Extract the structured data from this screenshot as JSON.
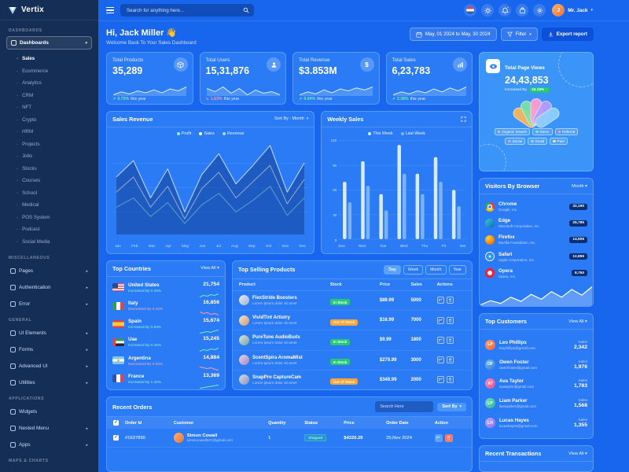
{
  "colors": {
    "success": "#6ef0ac",
    "danger": "#ff99a3",
    "accent": "#2c7bf5",
    "warning": "#ffa43a"
  },
  "brand": {
    "name": "Vertix"
  },
  "header": {
    "search_placeholder": "Search for anything here...",
    "user_name": "Mr. Jack"
  },
  "sidebar": {
    "sections": {
      "dashboards": {
        "label": "DASHBOARDS",
        "parent": "Dashboards",
        "active": "Sales",
        "items": [
          "Sales",
          "Ecommerce",
          "Analytics",
          "CRM",
          "NFT",
          "Crypto",
          "HRM",
          "Projects",
          "Jobs",
          "Stocks",
          "Courses",
          "School",
          "Medical",
          "POS System",
          "Podcast",
          "Social Media"
        ]
      },
      "misc": {
        "label": "MISCELLANEOUS",
        "items": [
          "Pages",
          "Authentication",
          "Error"
        ]
      },
      "general": {
        "label": "GENERAL",
        "items": [
          "UI Elements",
          "Forms",
          "Advanced UI",
          "Utilities"
        ]
      },
      "applications": {
        "label": "APPLICATIONS",
        "items": [
          "Widgets",
          "Nested Menu",
          "Apps"
        ]
      },
      "maps": {
        "label": "MAPS & CHARTS"
      }
    }
  },
  "page": {
    "greeting": "Hi, Jack Miller 👋",
    "subtitle": "Welcome Back To Your Sales Dashboard",
    "date_range": "May, 01 2024 to May, 30 2024",
    "filter_label": "Filter",
    "export_label": "Export report"
  },
  "stats": [
    {
      "label": "Total Products",
      "value": "35,289",
      "change": "0.75%",
      "suffix": "this year",
      "direction": "up",
      "spark": [
        4,
        7,
        5,
        8,
        6,
        9,
        6,
        10,
        8,
        12
      ]
    },
    {
      "label": "Total Users",
      "value": "15,31,876",
      "change": "1.63%",
      "suffix": "this year",
      "direction": "down",
      "spark": [
        8,
        6,
        9,
        5,
        8,
        4,
        7,
        5,
        6,
        4
      ]
    },
    {
      "label": "Total Revenue",
      "value": "$3.853M",
      "change": "0.94%",
      "suffix": "this year",
      "direction": "up",
      "spark": [
        3,
        6,
        4,
        8,
        5,
        9,
        7,
        10,
        8,
        11
      ]
    },
    {
      "label": "Total Sales",
      "value": "6,23,783",
      "change": "2.38%",
      "suffix": "this year",
      "direction": "up",
      "spark": [
        5,
        8,
        6,
        9,
        7,
        11,
        8,
        12,
        9,
        13
      ]
    }
  ],
  "sales_revenue": {
    "title": "Sales Revenue",
    "sort_label": "Sort By : Month",
    "chart": {
      "type": "line",
      "x": [
        "Jan",
        "Feb",
        "Mar",
        "Apr",
        "May",
        "Jun",
        "Jul",
        "Aug",
        "Sep",
        "Oct",
        "Nov",
        "Dec"
      ],
      "series": [
        {
          "name": "Profit",
          "color": "#8ff0ff",
          "values": [
            22,
            30,
            14,
            26,
            8,
            24,
            34,
            18,
            28,
            40,
            15,
            30
          ]
        },
        {
          "name": "Sales",
          "color": "#ffffff",
          "values": [
            35,
            48,
            22,
            40,
            12,
            38,
            52,
            30,
            44,
            58,
            25,
            46
          ]
        },
        {
          "name": "Revenue",
          "color": "#b3d2ff",
          "fill": "rgba(12,50,130,0.45)",
          "values": [
            48,
            62,
            30,
            55,
            18,
            50,
            68,
            42,
            58,
            75,
            35,
            60
          ]
        }
      ]
    }
  },
  "weekly_sales": {
    "title": "Weekly Sales",
    "chart": {
      "type": "bar",
      "categories": [
        "Sun",
        "Mon",
        "Tue",
        "Wed",
        "Thu",
        "Fri",
        "Sat"
      ],
      "yticks": [
        120,
        90,
        60,
        30,
        0
      ],
      "ylim": [
        0,
        120
      ],
      "series": [
        {
          "name": "This Week",
          "color": "#d9ecff",
          "values": [
            70,
            95,
            55,
            115,
            80,
            100,
            60
          ]
        },
        {
          "name": "Last Week",
          "color": "#7ab2f8",
          "values": [
            45,
            65,
            35,
            80,
            55,
            70,
            40
          ]
        }
      ]
    }
  },
  "page_views": {
    "label": "Total Page Views",
    "value": "24,43,853",
    "change_prefix": "Increased By",
    "change": "34.15%",
    "legend": [
      "Organic Search",
      "Direct",
      "Referral",
      "Social",
      "Email",
      "Paid"
    ],
    "legend_colors": [
      "#ffc36b",
      "#7df0a8",
      "#ff9ed0",
      "#c3a8ff",
      "#8fd3ff",
      "#ffe082"
    ],
    "fan_colors": [
      "#ffb65c",
      "#7de3a6",
      "#ff9ed0",
      "#b79dff",
      "#8fd0ff"
    ]
  },
  "visitors": {
    "title": "Visitors By Browser",
    "period": "Month",
    "rows": [
      {
        "name": "Chrome",
        "company": "Google, Inc.",
        "value": "32,190"
      },
      {
        "name": "Edge",
        "company": "Microsoft Corporation, Inc.",
        "value": "25,785"
      },
      {
        "name": "Firefox",
        "company": "Mozilla Foundation, Inc.",
        "value": "14,506"
      },
      {
        "name": "Safari",
        "company": "Apple Corporation, Inc.",
        "value": "12,896"
      },
      {
        "name": "Opera",
        "company": "Opera, Inc.",
        "value": "8,750"
      }
    ],
    "spark": [
      18,
      30,
      22,
      40,
      28,
      48,
      34,
      56,
      40,
      62,
      46,
      70
    ]
  },
  "top_countries": {
    "title": "Top Countries",
    "view_all": "View All",
    "rows": [
      {
        "name": "United States",
        "trend": "Increased By",
        "pct": "0.25%",
        "dir": "up",
        "value": "21,754",
        "spark": [
          3,
          5,
          4,
          6,
          5,
          7
        ]
      },
      {
        "name": "Italy",
        "trend": "Decreased By",
        "pct": "0.15%",
        "dir": "down",
        "value": "16,856",
        "spark": [
          6,
          4,
          5,
          3,
          4,
          2
        ]
      },
      {
        "name": "Spain",
        "trend": "Increased By",
        "pct": "0.84%",
        "dir": "up",
        "value": "15,674",
        "spark": [
          3,
          4,
          5,
          4,
          6,
          7
        ]
      },
      {
        "name": "Uae",
        "trend": "Increased By",
        "pct": "0.45%",
        "dir": "up",
        "value": "15,245",
        "spark": [
          2,
          4,
          3,
          5,
          4,
          6
        ]
      },
      {
        "name": "Argentina",
        "trend": "Decreased By",
        "pct": "0.35%",
        "dir": "down",
        "value": "14,884",
        "spark": [
          6,
          5,
          4,
          5,
          3,
          2
        ]
      },
      {
        "name": "France",
        "trend": "Increased By",
        "pct": "1.42%",
        "dir": "up",
        "value": "13,369",
        "spark": [
          2,
          3,
          4,
          5,
          6,
          7
        ]
      }
    ]
  },
  "top_products": {
    "title": "Top Selling Products",
    "tabs": [
      "Day",
      "Week",
      "Month",
      "Year"
    ],
    "active_tab": "Day",
    "columns": [
      "Product",
      "Stock",
      "Price",
      "Sales",
      "Actions"
    ],
    "rows": [
      {
        "name": "FlexStride Boosters",
        "desc": "Lorem ipsum dolor sit amet",
        "stock": "In Stock",
        "stock_state": "in",
        "price": "$89.99",
        "sales": "5000"
      },
      {
        "name": "VividTint Artistry",
        "desc": "Lorem ipsum dolor sit amet",
        "stock": "Out Of Stock",
        "stock_state": "out",
        "price": "$16.99",
        "sales": "7000"
      },
      {
        "name": "PureTune AudioBuds",
        "desc": "Lorem ipsum dolor sit amet",
        "stock": "In Stock",
        "stock_state": "in",
        "price": "$9.99",
        "sales": "1800"
      },
      {
        "name": "ScentSpira AromaMist",
        "desc": "Lorem ipsum dolor sit amet",
        "stock": "In Stock",
        "stock_state": "in",
        "price": "$279.99",
        "sales": "3000"
      },
      {
        "name": "SnapPro CaptureCam",
        "desc": "Lorem ipsum dolor sit amet",
        "stock": "Out Of Stock",
        "stock_state": "out",
        "price": "$349.99",
        "sales": "2000"
      }
    ]
  },
  "recent_orders": {
    "title": "Recent Orders",
    "search_placeholder": "Search Here",
    "sort_label": "Sort By",
    "columns": [
      "Order Id",
      "Customer",
      "Quantity",
      "Status",
      "Price",
      "Order Date",
      "Action"
    ],
    "rows": [
      {
        "id": "#1637890",
        "customer": "Simon Cowall",
        "email": "simoncowall247@gmail.com",
        "quantity": "1",
        "status": "Shipped",
        "price": "$4320.29",
        "date": "25,Nov 2024"
      }
    ]
  },
  "top_customers": {
    "title": "Top Customers",
    "view_all": "View All",
    "sales_label": "Sales",
    "rows": [
      {
        "name": "Leo Phillips",
        "email": "leophillips@gmail.com",
        "value": "2,342",
        "initials": "LP"
      },
      {
        "name": "Owen Foster",
        "email": "owenfoster@gmail.com",
        "value": "1,976",
        "initials": "OF"
      },
      {
        "name": "Ava Taylor",
        "email": "avataylor@gmail.com",
        "value": "1,783",
        "initials": "AT"
      },
      {
        "name": "Liam Parker",
        "email": "liamparker@gmail.com",
        "value": "1,568",
        "initials": "LP"
      },
      {
        "name": "Lucas Hayes",
        "email": "lucashayes@gmail.com",
        "value": "1,355",
        "initials": "LH"
      }
    ]
  },
  "recent_transactions": {
    "title": "Recent Transactions",
    "view_all": "View All"
  }
}
